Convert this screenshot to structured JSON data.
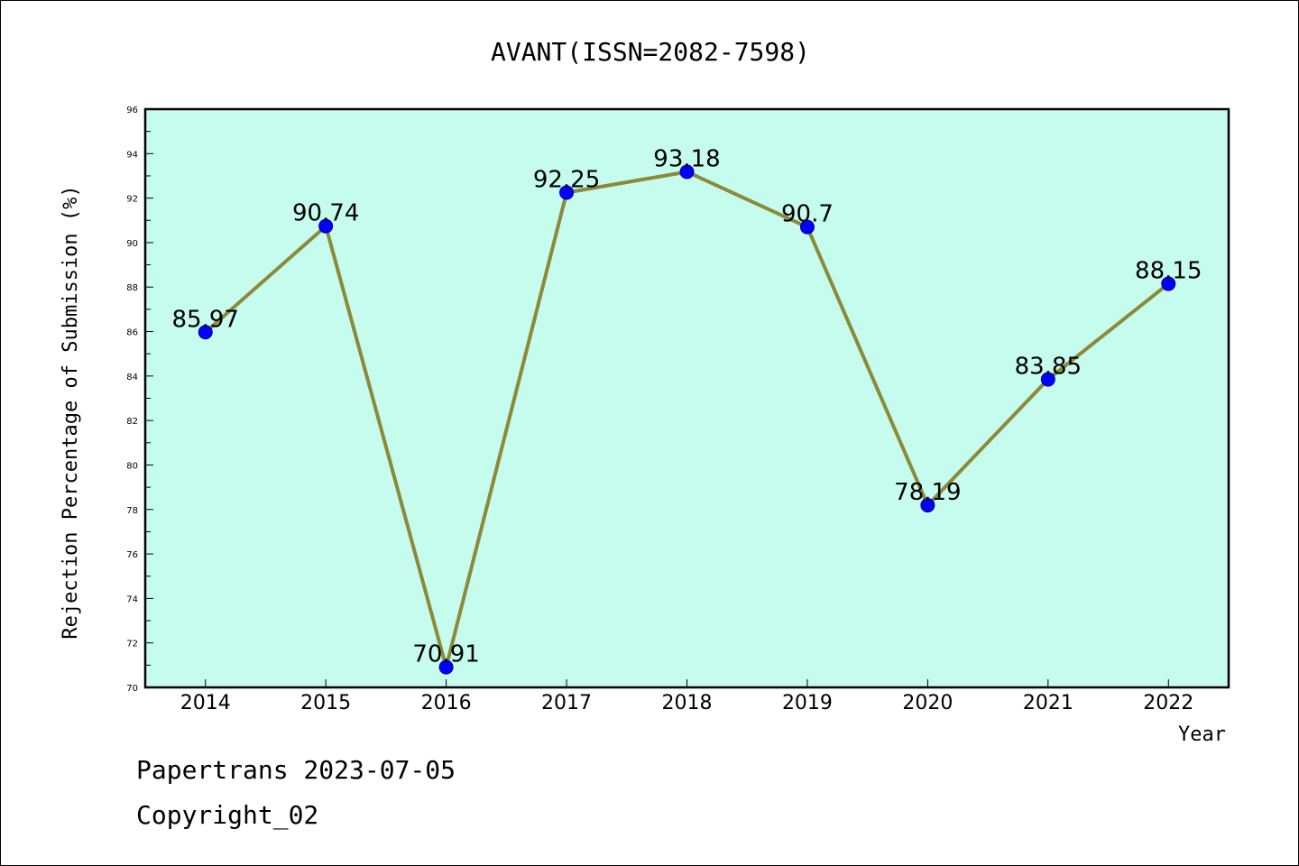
{
  "chart_data": {
    "type": "line",
    "title": "AVANT(ISSN=2082-7598)",
    "xlabel": "Year",
    "ylabel": "Rejection Percentage of Submission (%)",
    "x": [
      "2014",
      "2015",
      "2016",
      "2017",
      "2018",
      "2019",
      "2020",
      "2021",
      "2022"
    ],
    "series": [
      {
        "values": [
          85.97,
          90.74,
          70.91,
          92.25,
          93.18,
          90.7,
          78.19,
          83.85,
          88.15
        ]
      }
    ],
    "data_labels": [
      "85.97",
      "90.74",
      "70.91",
      "92.25",
      "93.18",
      "90.7",
      "78.19",
      "83.85",
      "88.15"
    ],
    "ylim": [
      70,
      96
    ],
    "yticks": [
      "70",
      "72",
      "74",
      "76",
      "78",
      "80",
      "82",
      "84",
      "86",
      "88",
      "90",
      "92",
      "94",
      "96"
    ],
    "grid": false,
    "colors": {
      "plot_background": "#c6fcee",
      "line": "#8c8a3a",
      "marker": "#0000ff"
    }
  },
  "footer": {
    "line1": "Papertrans 2023-07-05",
    "line2": "Copyright_02"
  }
}
